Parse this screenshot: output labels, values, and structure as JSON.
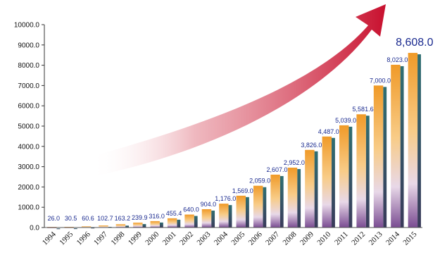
{
  "chart_data": {
    "type": "bar",
    "title": "",
    "xlabel": "",
    "ylabel": "",
    "categories": [
      "1994",
      "1995",
      "1996",
      "1997",
      "1998",
      "1999",
      "2000",
      "2001",
      "2002",
      "2003",
      "2004",
      "2005",
      "2006",
      "2007",
      "2008",
      "2009",
      "2010",
      "2011",
      "2012",
      "2013",
      "2014",
      "2015"
    ],
    "values": [
      26.0,
      30.5,
      60.6,
      102.7,
      163.2,
      239.9,
      316.0,
      455.4,
      640.0,
      904.0,
      1176.0,
      1569.0,
      2059.0,
      2607.0,
      2952.0,
      3826.0,
      4487.0,
      5039.0,
      5581.6,
      7000.0,
      8023.0,
      8608.0
    ],
    "value_labels": [
      "26.0",
      "30.5",
      "60.6",
      "102.7",
      "163.2",
      "239.9",
      "316.0",
      "455.4",
      "640.0",
      "904.0",
      "1,176.0",
      "1,569.0",
      "2,059.0",
      "2,607.0",
      "2,952.0",
      "3,826.0",
      "4,487.0",
      "5,039.0",
      "5,581.6",
      "7,000.0",
      "8,023.0",
      "8,608.0"
    ],
    "ylim": [
      0,
      10000
    ],
    "yticks": [
      "0.0",
      "1000.0",
      "2000.0",
      "3000.0",
      "4000.0",
      "5000.0",
      "6000.0",
      "7000.0",
      "8000.0",
      "9000.0",
      "10000.0"
    ],
    "grid": false,
    "legend": "none",
    "decoration": "red upward-curving trend arrow",
    "colors": {
      "bar_top": "#f0a030",
      "bar_mid": "#f8d090",
      "bar_bottom": "#8a5aa0",
      "bar_side": "#2e6b6e",
      "arrow": "#c8102e",
      "value_label": "#1a2a8f"
    }
  }
}
